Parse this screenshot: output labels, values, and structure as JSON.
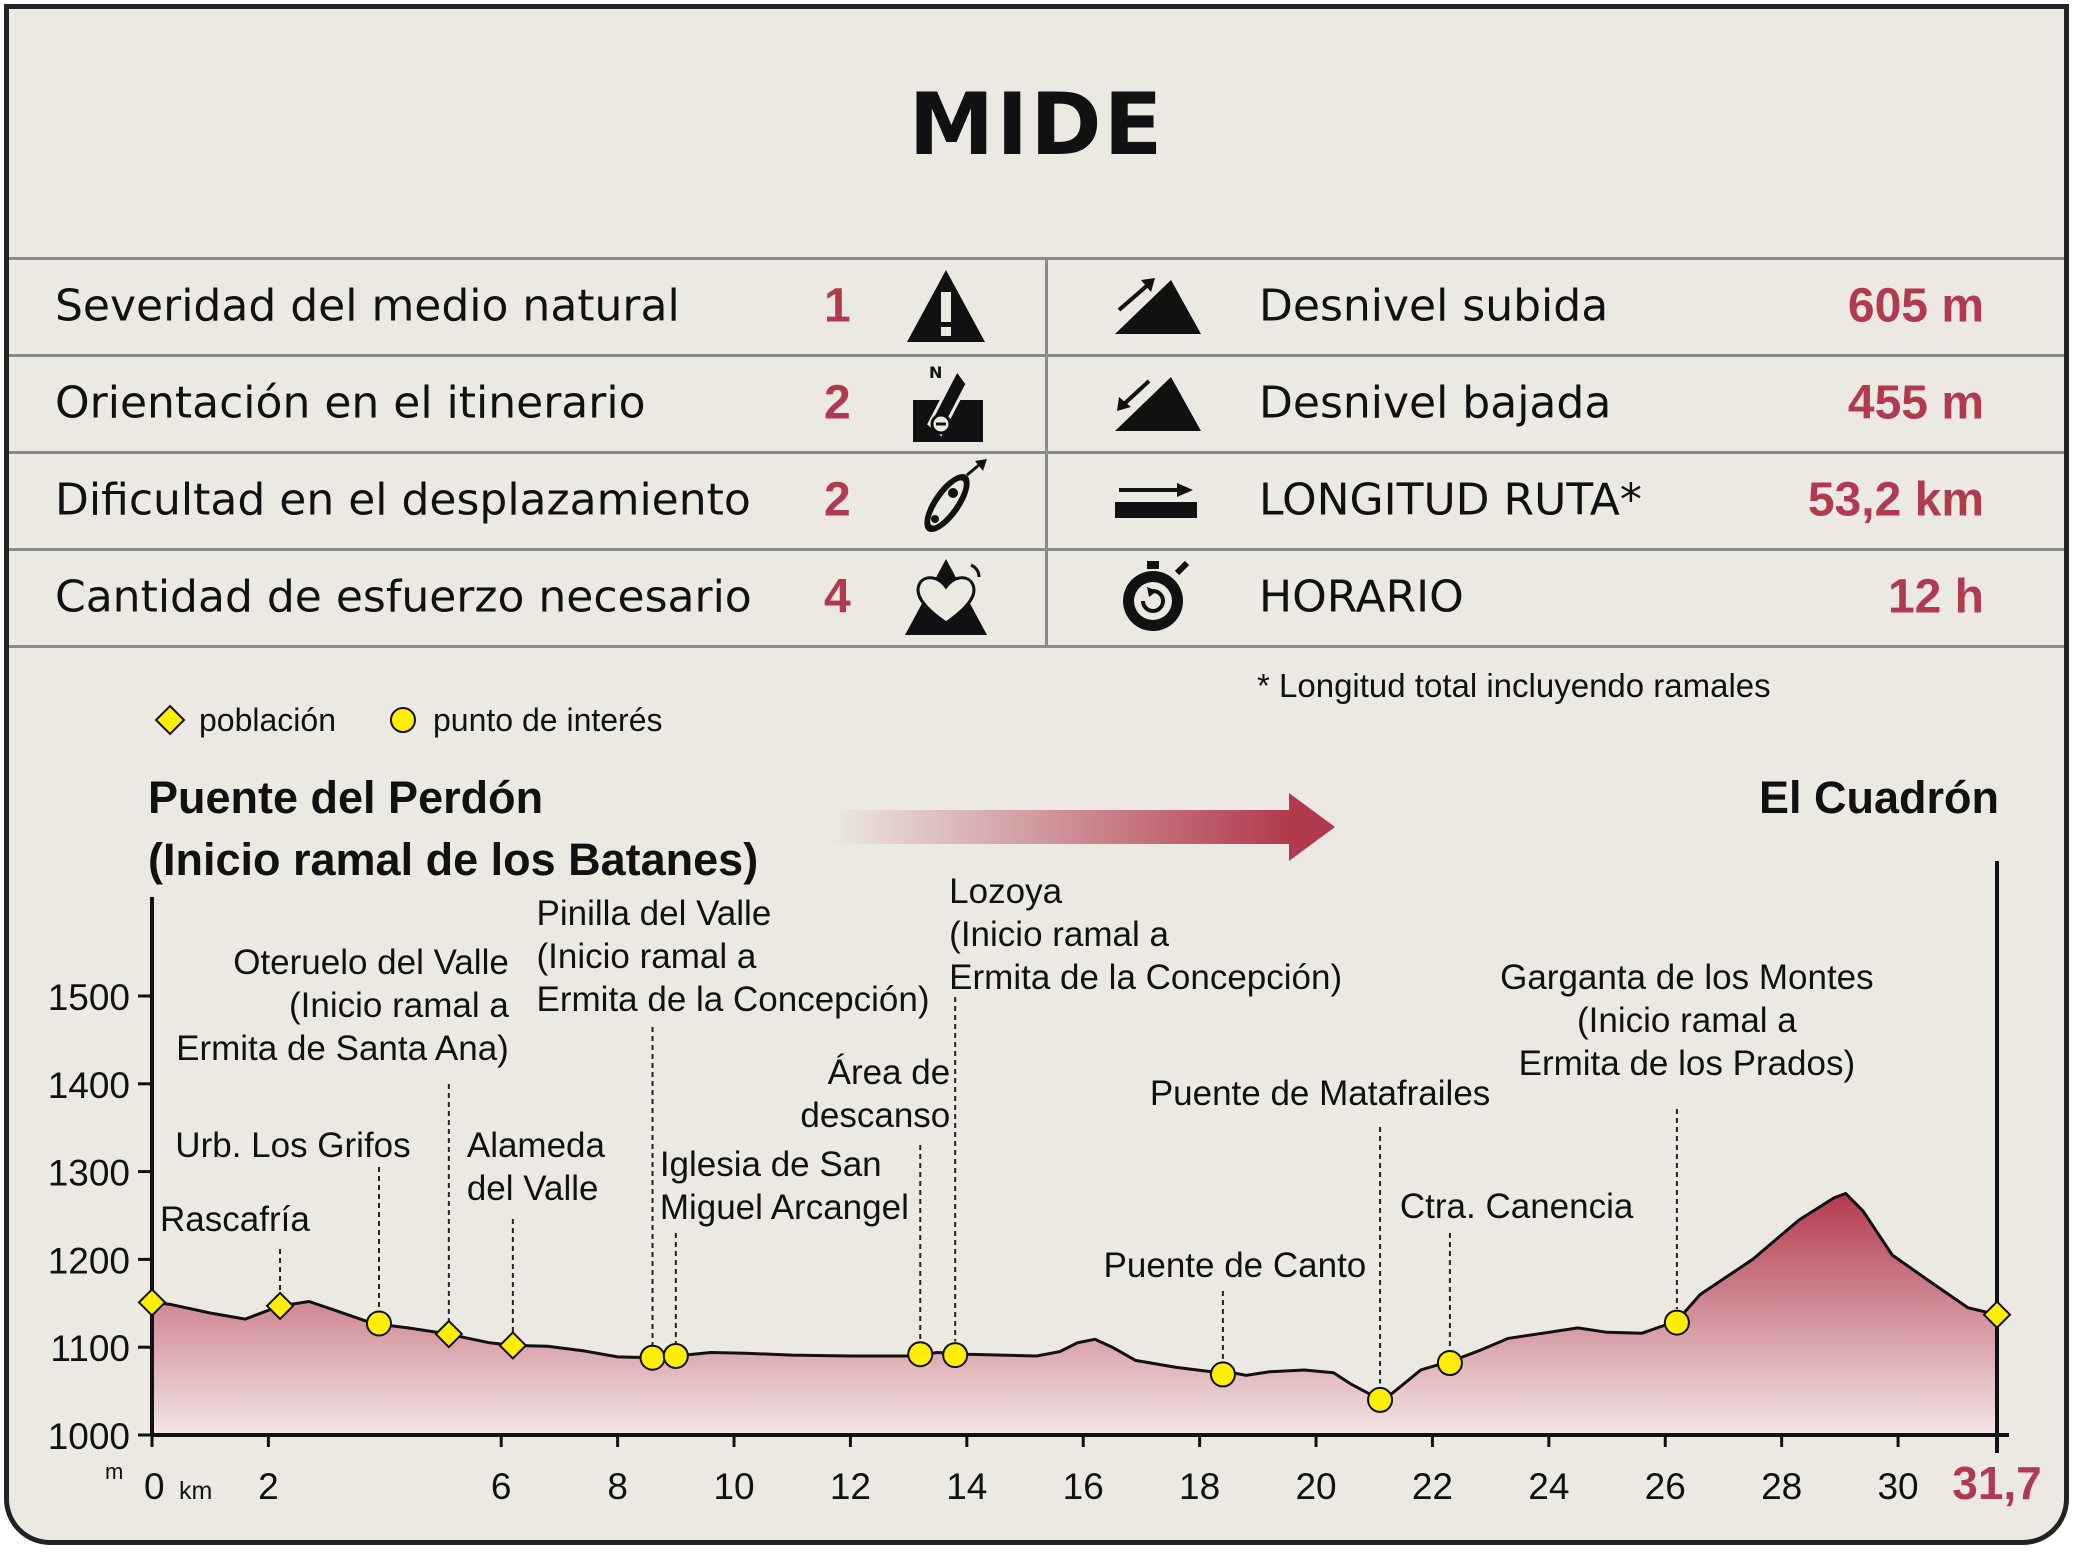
{
  "title": "MIDE",
  "mide": {
    "rows": [
      {
        "label": "Severidad del medio natural",
        "value": "1",
        "icon": "warning-icon"
      },
      {
        "label": "Orientación en el itinerario",
        "value": "2",
        "icon": "compass-icon"
      },
      {
        "label": "Dificultad en el desplazamiento",
        "value": "2",
        "icon": "footprint-icon"
      },
      {
        "label": "Cantidad de esfuerzo necesario",
        "value": "4",
        "icon": "heart-effort-icon"
      }
    ],
    "stats": [
      {
        "label": "Desnivel subida",
        "value": "605 m",
        "icon": "ascent-icon"
      },
      {
        "label": "Desnivel bajada",
        "value": "455 m",
        "icon": "descent-icon"
      },
      {
        "label": "LONGITUD RUTA*",
        "value": "53,2 km",
        "icon": "length-icon"
      },
      {
        "label": "HORARIO",
        "value": "12 h",
        "icon": "stopwatch-icon"
      }
    ],
    "footnote": "* Longitud total incluyendo ramales"
  },
  "colors": {
    "accent": "#b23a4e",
    "background": "#ebe9e2",
    "profile_fill_top": "#b23a4e",
    "profile_fill_bottom": "#f3e6e6",
    "marker": "#ffee00"
  },
  "legend": {
    "poblacion": "población",
    "punto_interes": "punto de interés"
  },
  "chart_data": {
    "type": "area",
    "start_label_line1": "Puente del Perdón",
    "start_label_line2": "(Inicio ramal de los Batanes)",
    "end_label": "El Cuadrón",
    "ylabel": "m",
    "xlabel": "km",
    "xlim": [
      0,
      31.7
    ],
    "ylim": [
      1000,
      1600
    ],
    "xticks": [
      "0",
      "2",
      "6",
      "8",
      "10",
      "12",
      "14",
      "16",
      "18",
      "20",
      "22",
      "24",
      "26",
      "28",
      "30"
    ],
    "xticks_values": [
      0,
      2,
      6,
      8,
      10,
      12,
      14,
      16,
      18,
      20,
      22,
      24,
      26,
      28,
      30
    ],
    "x_end_label": "31,7",
    "yticks": [
      1000,
      1100,
      1200,
      1300,
      1400,
      1500
    ],
    "profile": {
      "x": [
        0,
        0.3,
        1.0,
        1.6,
        2.2,
        2.7,
        3.1,
        3.8,
        4.4,
        4.9,
        5.3,
        5.8,
        6.2,
        6.8,
        7.4,
        8.0,
        8.6,
        9.0,
        9.6,
        10.2,
        11.0,
        12.0,
        13.0,
        13.5,
        14.0,
        14.6,
        15.2,
        15.6,
        15.9,
        16.2,
        16.5,
        16.9,
        17.6,
        18.2,
        18.4,
        18.8,
        19.2,
        19.8,
        20.3,
        20.6,
        21.0,
        21.3,
        21.8,
        22.4,
        22.8,
        23.3,
        23.9,
        24.5,
        25.0,
        25.6,
        26.2,
        26.6,
        27.5,
        28.3,
        28.9,
        29.1,
        29.4,
        29.9,
        30.5,
        31.2,
        31.7
      ],
      "y": [
        1151,
        1149,
        1139,
        1132,
        1147,
        1152,
        1143,
        1127,
        1122,
        1117,
        1112,
        1105,
        1102,
        1101,
        1096,
        1089,
        1088,
        1090,
        1094,
        1093,
        1091,
        1090,
        1090,
        1094,
        1092,
        1091,
        1090,
        1095,
        1105,
        1109,
        1100,
        1085,
        1077,
        1072,
        1073,
        1068,
        1072,
        1074,
        1071,
        1058,
        1044,
        1047,
        1074,
        1086,
        1096,
        1110,
        1116,
        1122,
        1117,
        1116,
        1130,
        1160,
        1200,
        1245,
        1270,
        1275,
        1255,
        1205,
        1177,
        1145,
        1137
      ]
    },
    "poblacion": [
      {
        "x": 0.0,
        "y": 1151,
        "name": ""
      },
      {
        "x": 2.2,
        "y": 1147,
        "name": "Rascafría"
      },
      {
        "x": 5.1,
        "y": 1115,
        "name": "Oteruelo del Valle (Inicio ramal a Ermita de Santa Ana)"
      },
      {
        "x": 6.2,
        "y": 1102,
        "name": "Alameda del Valle"
      },
      {
        "x": 31.7,
        "y": 1137,
        "name": ""
      }
    ],
    "puntos_interes": [
      {
        "x": 3.9,
        "y": 1127,
        "name": "Urb. Los Grifos"
      },
      {
        "x": 8.6,
        "y": 1088,
        "name": "Pinilla del Valle (Inicio ramal a Ermita de la Concepción)"
      },
      {
        "x": 9.0,
        "y": 1090,
        "name": "Iglesia de San Miguel Arcangel"
      },
      {
        "x": 13.2,
        "y": 1092,
        "name": "Área de descanso"
      },
      {
        "x": 13.8,
        "y": 1091,
        "name": "Lozoya (Inicio ramal a Ermita de la Concepción)"
      },
      {
        "x": 18.4,
        "y": 1069,
        "name": "Puente de Canto"
      },
      {
        "x": 21.1,
        "y": 1040,
        "name": "Puente de Matafrailes"
      },
      {
        "x": 22.3,
        "y": 1082,
        "name": "Ctra. Canencia"
      },
      {
        "x": 26.2,
        "y": 1128,
        "name": "Garganta de los Montes (Inicio ramal a Ermita de los Prados)"
      }
    ],
    "annotations": [
      {
        "lines": [
          "Rascafría"
        ],
        "anchor": 2.2,
        "align": "start"
      },
      {
        "lines": [
          "Urb. Los Grifos"
        ],
        "anchor": 3.9,
        "align": "middle"
      },
      {
        "lines": [
          "Oteruelo del Valle",
          "(Inicio ramal a",
          "Ermita de Santa Ana)"
        ],
        "anchor": 5.1,
        "align": "end"
      },
      {
        "lines": [
          "Alameda",
          "del Valle"
        ],
        "anchor": 6.2,
        "align": "start"
      },
      {
        "lines": [
          "Pinilla del Valle",
          "(Inicio ramal a",
          "Ermita de la Concepción)"
        ],
        "anchor": 8.6,
        "align": "start"
      },
      {
        "lines": [
          "Iglesia de San",
          "Miguel Arcangel"
        ],
        "anchor": 9.0,
        "align": "start"
      },
      {
        "lines": [
          "Área de",
          "descanso"
        ],
        "anchor": 13.2,
        "align": "end"
      },
      {
        "lines": [
          "Lozoya",
          "(Inicio ramal a",
          "Ermita de la Concepción)"
        ],
        "anchor": 13.8,
        "align": "start"
      },
      {
        "lines": [
          "Puente de Canto"
        ],
        "anchor": 18.4,
        "align": "middle"
      },
      {
        "lines": [
          "Puente de Matafrailes"
        ],
        "anchor": 21.1,
        "align": "middle"
      },
      {
        "lines": [
          "Ctra. Canencia"
        ],
        "anchor": 22.3,
        "align": "start"
      },
      {
        "lines": [
          "Garganta de los Montes",
          "(Inicio ramal a",
          "Ermita de los Prados)"
        ],
        "anchor": 26.2,
        "align": "middle"
      }
    ]
  }
}
